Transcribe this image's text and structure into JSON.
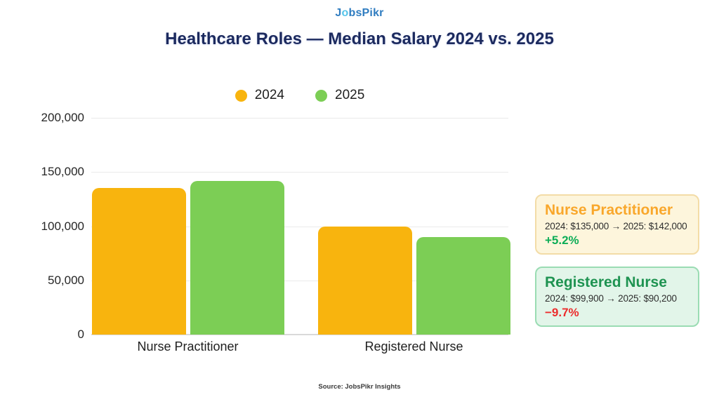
{
  "brand": {
    "logo_part1": "J",
    "logo_part2": "o",
    "logo_part3": "bsPikr"
  },
  "title": "Healthcare Roles — Median Salary 2024 vs. 2025",
  "legend": [
    {
      "label": "2024",
      "color": "#f8b40e"
    },
    {
      "label": "2025",
      "color": "#7cce55"
    }
  ],
  "chart_data": {
    "type": "bar",
    "categories": [
      "Nurse Practitioner",
      "Registered Nurse"
    ],
    "series": [
      {
        "name": "2024",
        "color": "#f8b40e",
        "values": [
          135000,
          99900
        ]
      },
      {
        "name": "2025",
        "color": "#7cce55",
        "values": [
          142000,
          90200
        ]
      }
    ],
    "title": "Healthcare Roles — Median Salary 2024 vs. 2025",
    "xlabel": "",
    "ylabel": "",
    "ylim": [
      0,
      200000
    ],
    "yticks": [
      {
        "value": 0,
        "label": "0"
      },
      {
        "value": 50000,
        "label": "50,000"
      },
      {
        "value": 100000,
        "label": "100,000"
      },
      {
        "value": 150000,
        "label": "150,000"
      },
      {
        "value": 200000,
        "label": "200,000"
      }
    ],
    "grid": true,
    "legend_position": "top-center"
  },
  "annotations": [
    {
      "title": "Nurse Practitioner",
      "title_color": "#f9a72b",
      "line": "2024: $135,000 → 2025: $142,000",
      "delta": "+5.2%",
      "delta_color": "#0dad57",
      "bg": "#fdf5dc",
      "border": "#f3dca7"
    },
    {
      "title": "Registered Nurse",
      "title_color": "#1e9351",
      "line": "2024: $99,900 → 2025: $90,200",
      "delta": "−9.7%",
      "delta_color": "#ec2c2c",
      "bg": "#e2f5e9",
      "border": "#9adcb3"
    }
  ],
  "footer": "Source: JobsPikr Insights"
}
